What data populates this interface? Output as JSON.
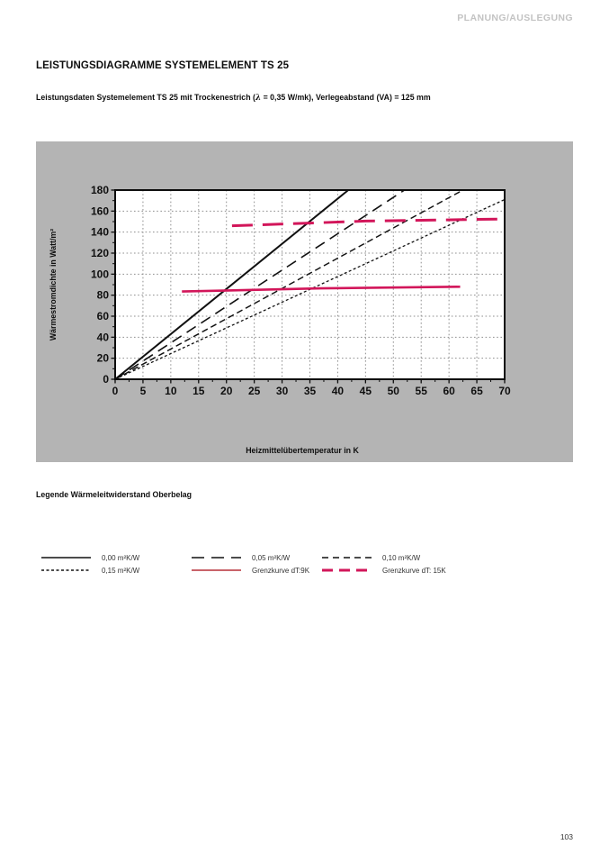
{
  "header": {
    "label": "PLANUNG/AUSLEGUNG"
  },
  "title": "LEISTUNGSDIAGRAMME SYSTEMELEMENT TS 25",
  "subtitle": {
    "part1": "Leistungsdaten Systemelement TS 25 mit Trockenestrich (",
    "lambda": "λ",
    "part2": " = 0,35 W/mk), Verlegeabstand (VA) = 125 mm"
  },
  "colors": {
    "accent_red": "#d2165a",
    "panel_gray": "#b4b4b4",
    "grid_gray": "#8f8f8f",
    "header_gray": "#c3c3c3"
  },
  "chart_data": {
    "type": "line",
    "title": "",
    "xlabel": "Heizmittelübertemperatur in K",
    "ylabel": "Wärmestromdichte in Watt/m²",
    "xlim": [
      0,
      70
    ],
    "ylim": [
      0,
      180
    ],
    "x_ticks": [
      0,
      5,
      10,
      15,
      20,
      25,
      30,
      35,
      40,
      45,
      50,
      55,
      60,
      65,
      70
    ],
    "y_ticks": [
      0,
      20,
      40,
      60,
      80,
      100,
      120,
      140,
      160,
      180
    ],
    "x_minor_step": 2.5,
    "y_minor_step": 10,
    "grid": {
      "x_step": 5,
      "y_step": 20,
      "style": "dotted",
      "color": "#8f8f8f"
    },
    "legend_position": "below-outside",
    "series": [
      {
        "name": "0,00 m²K/W",
        "slope_W_per_m2K": 4.3,
        "points": [
          [
            0,
            0
          ],
          [
            41.9,
            180
          ]
        ],
        "color": "#111111",
        "dash": "",
        "width": 2
      },
      {
        "name": "0,05 m²K/W",
        "slope_W_per_m2K": 3.46,
        "points": [
          [
            0,
            0
          ],
          [
            52,
            180
          ]
        ],
        "color": "#111111",
        "dash": "12,7",
        "width": 1.6
      },
      {
        "name": "0,10 m²K/W",
        "slope_W_per_m2K": 2.88,
        "points": [
          [
            0,
            0
          ],
          [
            62.5,
            180
          ]
        ],
        "color": "#111111",
        "dash": "7,4",
        "width": 1.5
      },
      {
        "name": "0,15 m²K/W",
        "slope_W_per_m2K": 2.44,
        "points": [
          [
            0,
            0
          ],
          [
            70,
            171
          ]
        ],
        "color": "#111111",
        "dash": "3,2.5",
        "width": 1.3
      },
      {
        "name": "Grenzkurve dT:9K",
        "points": [
          [
            12,
            83.5
          ],
          [
            37,
            86.5
          ],
          [
            62,
            88
          ]
        ],
        "color": "#d2165a",
        "dash": "",
        "width": 2.6
      },
      {
        "name": "Grenzkurve dT: 15K",
        "points": [
          [
            21,
            146
          ],
          [
            45,
            150.5
          ],
          [
            70,
            152.5
          ]
        ],
        "color": "#d2165a",
        "dash": "23,11",
        "width": 3
      }
    ]
  },
  "legend": {
    "title": "Legende Wärmeleitwiderstand Oberbelag",
    "items": [
      {
        "label": "0,00 m²K/W",
        "color": "#111111",
        "dash": "",
        "width": 1.6
      },
      {
        "label": "0,05 m²K/W",
        "color": "#111111",
        "dash": "14,8",
        "width": 1.6
      },
      {
        "label": "0,10 m²K/W",
        "color": "#111111",
        "dash": "7,5",
        "width": 1.6
      },
      {
        "label": "0,15 m²K/W",
        "color": "#111111",
        "dash": "3,2.5",
        "width": 1.4
      },
      {
        "label": "Grenzkurve dT:9K",
        "color": "#c9636a",
        "dash": "",
        "width": 2
      },
      {
        "label": "Grenzkurve dT: 15K",
        "color": "#d2165a",
        "dash": "12,7",
        "width": 3
      }
    ]
  },
  "page_number": "103"
}
